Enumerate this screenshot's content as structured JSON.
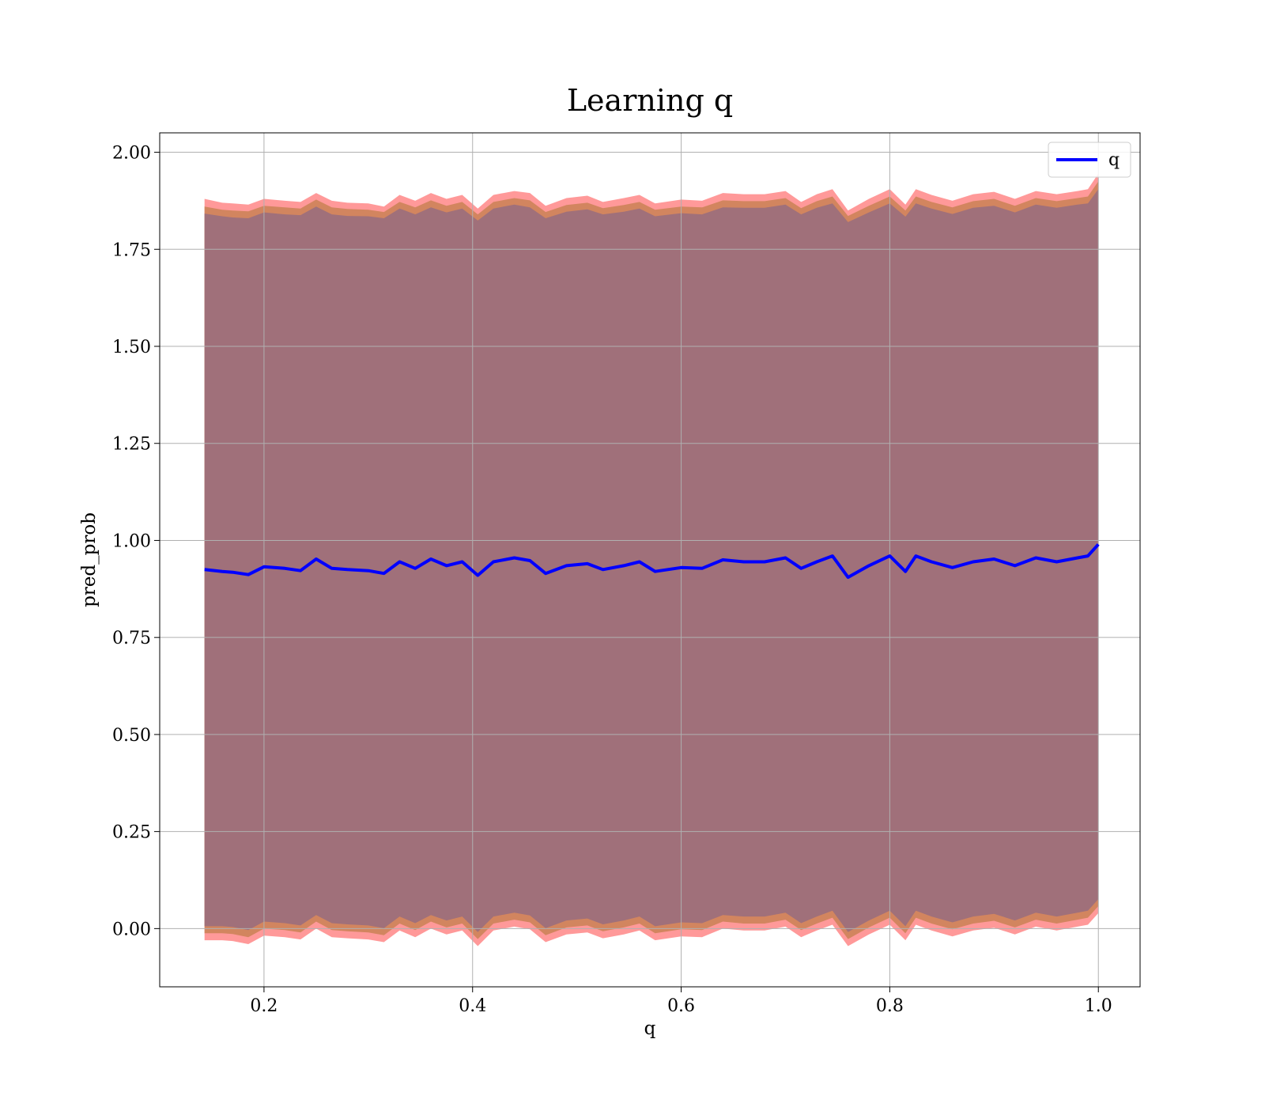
{
  "chart_data": {
    "type": "line",
    "title": "Learning q",
    "xlabel": "q",
    "ylabel": "pred_prob",
    "xlim": [
      0.1,
      1.04
    ],
    "ylim": [
      -0.15,
      2.05
    ],
    "grid": true,
    "legend_position": "top-right",
    "x_ticks": [
      0.2,
      0.4,
      0.6,
      0.8,
      1.0
    ],
    "x_tick_labels": [
      "0.2",
      "0.4",
      "0.6",
      "0.8",
      "1.0"
    ],
    "y_ticks": [
      0.0,
      0.25,
      0.5,
      0.75,
      1.0,
      1.25,
      1.5,
      1.75,
      2.0
    ],
    "y_tick_labels": [
      "0.00",
      "0.25",
      "0.50",
      "0.75",
      "1.00",
      "1.25",
      "1.50",
      "1.75",
      "2.00"
    ],
    "series": [
      {
        "name": "q",
        "color": "#0000ff",
        "x": [
          0.143,
          0.16,
          0.17,
          0.185,
          0.2,
          0.22,
          0.235,
          0.25,
          0.265,
          0.28,
          0.3,
          0.315,
          0.33,
          0.345,
          0.36,
          0.375,
          0.39,
          0.405,
          0.42,
          0.44,
          0.455,
          0.47,
          0.49,
          0.51,
          0.525,
          0.545,
          0.56,
          0.575,
          0.6,
          0.62,
          0.64,
          0.66,
          0.68,
          0.7,
          0.715,
          0.73,
          0.745,
          0.76,
          0.78,
          0.8,
          0.815,
          0.825,
          0.84,
          0.86,
          0.88,
          0.9,
          0.92,
          0.94,
          0.96,
          0.98,
          0.99,
          1.0
        ],
        "y": [
          0.925,
          0.92,
          0.918,
          0.912,
          0.932,
          0.928,
          0.922,
          0.952,
          0.928,
          0.925,
          0.922,
          0.915,
          0.945,
          0.928,
          0.952,
          0.935,
          0.945,
          0.91,
          0.945,
          0.955,
          0.948,
          0.915,
          0.935,
          0.94,
          0.925,
          0.935,
          0.945,
          0.92,
          0.93,
          0.928,
          0.95,
          0.945,
          0.945,
          0.955,
          0.928,
          0.945,
          0.96,
          0.905,
          0.935,
          0.96,
          0.92,
          0.96,
          0.945,
          0.93,
          0.945,
          0.952,
          0.935,
          0.955,
          0.945,
          0.955,
          0.96,
          0.99
        ]
      }
    ],
    "bands": [
      {
        "color": "#ff9999",
        "upper": [
          1.88,
          1.87,
          1.868,
          1.865,
          1.88,
          1.875,
          1.872,
          1.895,
          1.875,
          1.87,
          1.868,
          1.86,
          1.89,
          1.875,
          1.895,
          1.88,
          1.89,
          1.855,
          1.89,
          1.9,
          1.895,
          1.862,
          1.882,
          1.888,
          1.872,
          1.882,
          1.89,
          1.868,
          1.878,
          1.875,
          1.895,
          1.892,
          1.892,
          1.9,
          1.872,
          1.892,
          1.905,
          1.85,
          1.88,
          1.905,
          1.865,
          1.905,
          1.89,
          1.875,
          1.892,
          1.898,
          1.88,
          1.9,
          1.892,
          1.9,
          1.905,
          1.945
        ],
        "lower": [
          -0.03,
          -0.03,
          -0.032,
          -0.04,
          -0.018,
          -0.022,
          -0.028,
          0.0,
          -0.022,
          -0.025,
          -0.028,
          -0.035,
          -0.005,
          -0.022,
          0.0,
          -0.015,
          -0.005,
          -0.045,
          -0.005,
          0.005,
          -0.002,
          -0.035,
          -0.015,
          -0.01,
          -0.025,
          -0.015,
          -0.005,
          -0.03,
          -0.02,
          -0.022,
          0.0,
          -0.005,
          -0.005,
          0.005,
          -0.022,
          -0.005,
          0.01,
          -0.045,
          -0.015,
          0.01,
          -0.03,
          0.01,
          -0.005,
          -0.02,
          -0.005,
          0.002,
          -0.015,
          0.005,
          -0.005,
          0.005,
          0.01,
          0.04
        ]
      },
      {
        "color": "#d2855f",
        "upper": [
          1.86,
          1.852,
          1.85,
          1.848,
          1.862,
          1.858,
          1.855,
          1.878,
          1.858,
          1.854,
          1.852,
          1.846,
          1.872,
          1.858,
          1.876,
          1.862,
          1.872,
          1.84,
          1.872,
          1.882,
          1.876,
          1.846,
          1.864,
          1.87,
          1.856,
          1.864,
          1.872,
          1.852,
          1.86,
          1.858,
          1.876,
          1.874,
          1.874,
          1.882,
          1.856,
          1.874,
          1.886,
          1.836,
          1.862,
          1.886,
          1.85,
          1.886,
          1.872,
          1.858,
          1.874,
          1.88,
          1.862,
          1.882,
          1.874,
          1.882,
          1.886,
          1.925
        ],
        "lower": [
          -0.012,
          -0.012,
          -0.014,
          -0.022,
          0.0,
          -0.004,
          -0.01,
          0.018,
          -0.004,
          -0.007,
          -0.01,
          -0.017,
          0.013,
          -0.004,
          0.018,
          0.003,
          0.013,
          -0.027,
          0.013,
          0.023,
          0.016,
          -0.017,
          0.003,
          0.008,
          -0.007,
          0.003,
          0.013,
          -0.012,
          -0.002,
          -0.004,
          0.018,
          0.013,
          0.013,
          0.023,
          -0.004,
          0.013,
          0.028,
          -0.027,
          0.003,
          0.028,
          -0.012,
          0.028,
          0.013,
          -0.002,
          0.013,
          0.02,
          0.003,
          0.023,
          0.013,
          0.023,
          0.028,
          0.058
        ]
      },
      {
        "color": "#a0707a",
        "upper": [
          1.842,
          1.835,
          1.832,
          1.83,
          1.845,
          1.84,
          1.838,
          1.86,
          1.84,
          1.836,
          1.835,
          1.83,
          1.855,
          1.84,
          1.858,
          1.845,
          1.855,
          1.824,
          1.855,
          1.865,
          1.858,
          1.83,
          1.847,
          1.853,
          1.84,
          1.847,
          1.855,
          1.835,
          1.843,
          1.84,
          1.858,
          1.857,
          1.857,
          1.865,
          1.84,
          1.857,
          1.868,
          1.82,
          1.845,
          1.868,
          1.834,
          1.868,
          1.855,
          1.841,
          1.857,
          1.862,
          1.845,
          1.865,
          1.857,
          1.865,
          1.868,
          1.905
        ],
        "lower": [
          0.006,
          0.006,
          0.004,
          -0.004,
          0.018,
          0.014,
          0.008,
          0.035,
          0.014,
          0.011,
          0.008,
          0.001,
          0.031,
          0.014,
          0.035,
          0.021,
          0.031,
          -0.009,
          0.031,
          0.041,
          0.034,
          0.001,
          0.021,
          0.026,
          0.011,
          0.021,
          0.031,
          0.006,
          0.016,
          0.014,
          0.035,
          0.031,
          0.031,
          0.041,
          0.014,
          0.031,
          0.046,
          -0.009,
          0.021,
          0.046,
          0.006,
          0.046,
          0.031,
          0.016,
          0.031,
          0.038,
          0.021,
          0.041,
          0.031,
          0.041,
          0.046,
          0.076
        ]
      }
    ]
  }
}
